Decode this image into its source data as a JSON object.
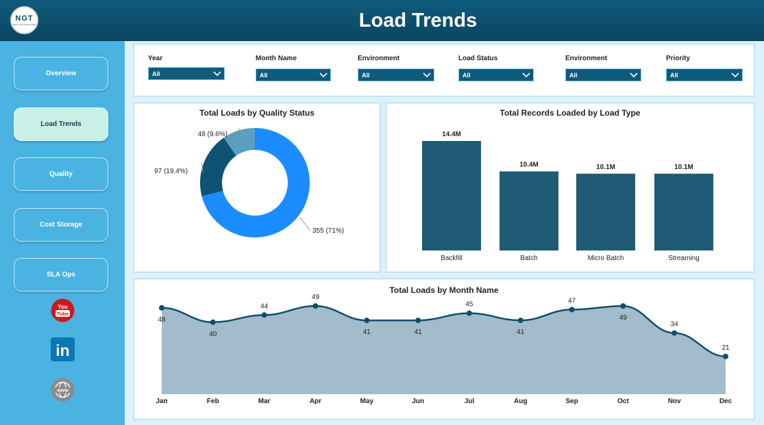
{
  "header": {
    "title": "Load Trends",
    "logo_text": "NGT",
    "logo_subtext": "NEXT GEN TEMPLATES"
  },
  "sidebar": {
    "items": [
      {
        "label": "Overview",
        "active": false
      },
      {
        "label": "Load Trends",
        "active": true
      },
      {
        "label": "Quality",
        "active": false
      },
      {
        "label": "Cost Storage",
        "active": false
      },
      {
        "label": "SLA Ops",
        "active": false
      }
    ],
    "social": [
      {
        "icon": "youtube-icon",
        "text": "You Tube",
        "color": "#cc1a1a"
      },
      {
        "icon": "linkedin-icon",
        "text": "in",
        "color": "#0a78b4"
      },
      {
        "icon": "globe-icon",
        "text": "www",
        "color": "#888888"
      }
    ]
  },
  "filters": [
    {
      "label": "Year",
      "value": "All"
    },
    {
      "label": "Month Name",
      "value": "All"
    },
    {
      "label": "Environment",
      "value": "All"
    },
    {
      "label": "Load Status",
      "value": "All"
    },
    {
      "label": "Environment",
      "value": "All"
    },
    {
      "label": "Priority",
      "value": "All"
    }
  ],
  "colors": {
    "header": "#0f5b7c",
    "sidebar": "#4ab3e2",
    "bar": "#1f5b74",
    "area_fill": "#a2bccb",
    "line": "#0f4e6b"
  },
  "chart_data": [
    {
      "type": "pie",
      "title": "Total Loads by Quality Status",
      "slices": [
        {
          "value": 355,
          "label": "355 (71%)",
          "color": "#1a8cff"
        },
        {
          "value": 97,
          "label": "97 (19.4%)",
          "color": "#0f5374"
        },
        {
          "value": 48,
          "label": "48 (9.6%)",
          "color": "#5b9ec0"
        }
      ]
    },
    {
      "type": "bar",
      "title": "Total Records Loaded by Load Type",
      "categories": [
        "Backfill",
        "Batch",
        "Micro Batch",
        "Streaming"
      ],
      "values": [
        14.4,
        10.4,
        10.1,
        10.1
      ],
      "value_labels": [
        "14.4M",
        "10.4M",
        "10.1M",
        "10.1M"
      ]
    },
    {
      "type": "area",
      "title": "Total Loads by Month Name",
      "categories": [
        "Jan",
        "Feb",
        "Mar",
        "Apr",
        "May",
        "Jun",
        "Jul",
        "Aug",
        "Sep",
        "Oct",
        "Nov",
        "Dec"
      ],
      "values": [
        48,
        40,
        44,
        49,
        41,
        41,
        45,
        41,
        47,
        49,
        34,
        21
      ],
      "ylim": [
        0,
        50
      ]
    }
  ]
}
